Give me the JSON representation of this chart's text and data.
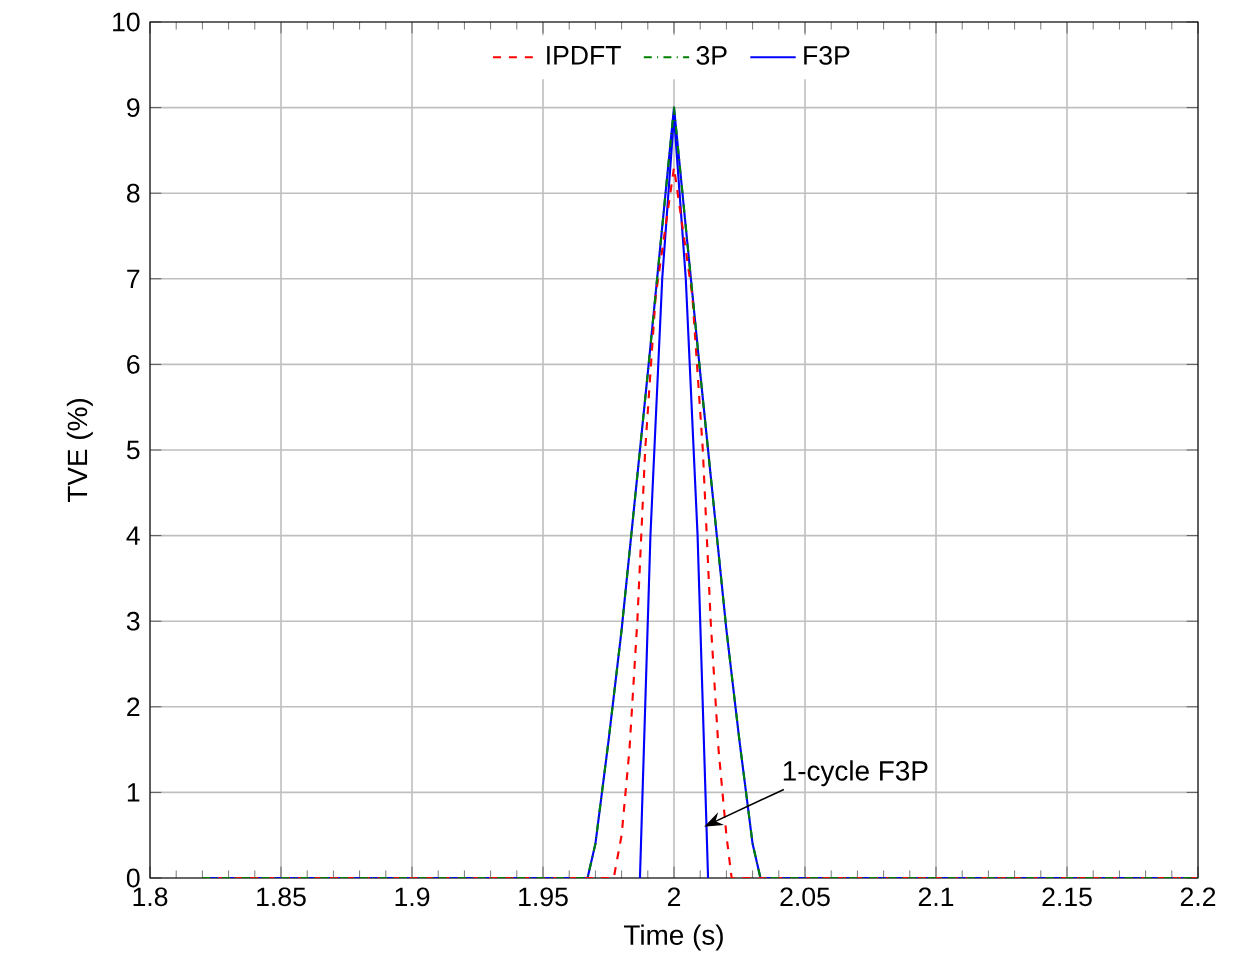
{
  "chart_data": {
    "type": "line",
    "xlabel": "Time (s)",
    "ylabel": "TVE (%)",
    "xlim": [
      1.8,
      2.2
    ],
    "ylim": [
      0,
      10
    ],
    "xticks": [
      1.8,
      1.85,
      1.9,
      1.95,
      2,
      2.05,
      2.1,
      2.15,
      2.2
    ],
    "yticks": [
      0,
      1,
      2,
      3,
      4,
      5,
      6,
      7,
      8,
      9,
      10
    ],
    "grid": true,
    "legend": "top",
    "series": [
      {
        "name": "IPDFT",
        "color": "#ff0000",
        "line_style": "dashed",
        "x": [
          1.82,
          1.977,
          1.98,
          1.983,
          1.986,
          1.989,
          1.993,
          2.0,
          2.007,
          2.011,
          2.014,
          2.017,
          2.02,
          2.022,
          2.2
        ],
        "values": [
          0,
          0,
          0.5,
          1.5,
          3,
          5,
          6.8,
          8.3,
          6.8,
          5,
          3,
          1.5,
          0.5,
          0,
          0
        ]
      },
      {
        "name": "3P",
        "color": "#008000",
        "line_style": "dashdot",
        "x": [
          1.82,
          1.967,
          1.97,
          1.975,
          1.98,
          1.99,
          2.0,
          2.01,
          2.02,
          2.025,
          2.03,
          2.033,
          2.2
        ],
        "values": [
          0,
          0,
          0.4,
          1.6,
          2.9,
          5.9,
          9,
          5.9,
          2.9,
          1.6,
          0.4,
          0,
          0
        ]
      },
      {
        "name": "F3P",
        "color": "#0000ff",
        "line_style": "solid",
        "x": [
          1.82,
          1.967,
          1.97,
          1.975,
          1.98,
          1.99,
          2.0,
          2.01,
          2.02,
          2.025,
          2.03,
          2.033,
          2.2
        ],
        "values": [
          0,
          0,
          0.4,
          1.6,
          2.9,
          5.9,
          9,
          5.9,
          2.9,
          1.6,
          0.4,
          0,
          0
        ]
      },
      {
        "color": "#0000ff",
        "line_style": "solid",
        "x": [
          1.987,
          1.988,
          1.991,
          1.9955,
          2.0,
          2.0045,
          2.009,
          2.012,
          2.013
        ],
        "values": [
          0,
          1,
          4,
          7,
          8.9,
          7,
          4,
          1,
          0
        ]
      }
    ],
    "annotations": [
      {
        "text": "1-cycle F3P",
        "x": 2.0115,
        "y": 0.6
      }
    ]
  }
}
